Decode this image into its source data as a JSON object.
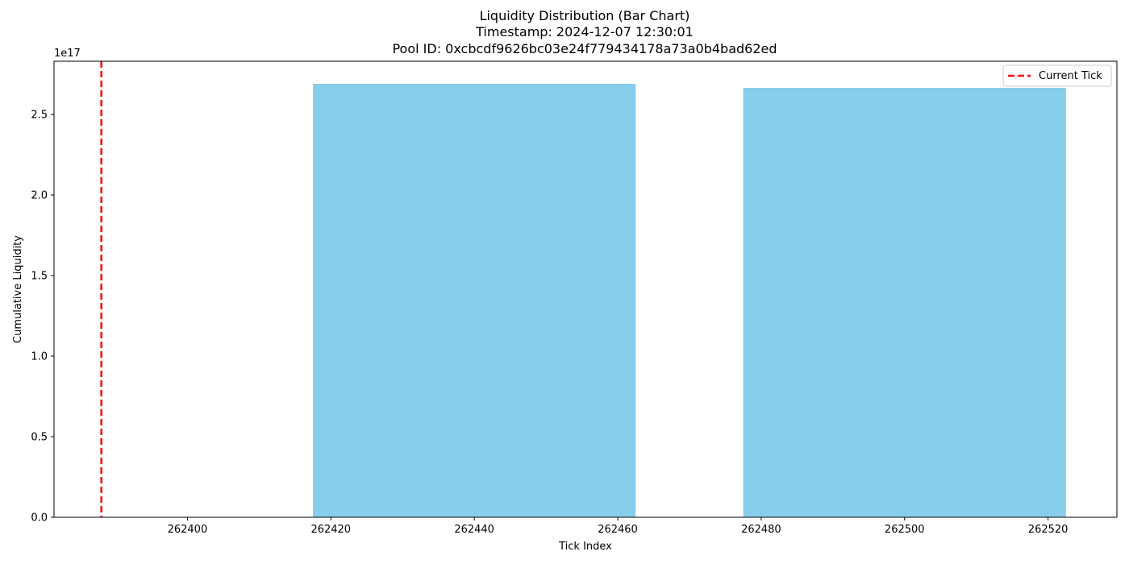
{
  "chart_data": {
    "type": "bar",
    "title_lines": [
      "Liquidity Distribution (Bar Chart)",
      "Timestamp: 2024-12-07 12:30:01",
      "Pool ID: 0xcbcdf9626bc03e24f779434178a73a0b4bad62ed"
    ],
    "xlabel": "Tick Index",
    "ylabel": "Cumulative Liquidity",
    "y_offset_label": "1e17",
    "bar_width": 45,
    "bars": [
      {
        "x": 262440,
        "value": 2.69
      },
      {
        "x": 262500,
        "value": 2.665
      }
    ],
    "bar_color": "#87CEEB",
    "xlim": [
      262381.4,
      262529.6
    ],
    "ylim": [
      0,
      2.83
    ],
    "xticks": [
      262400,
      262420,
      262440,
      262460,
      262480,
      262500,
      262520
    ],
    "xtick_labels": [
      "262400",
      "262420",
      "262440",
      "262460",
      "262480",
      "262500",
      "262520"
    ],
    "yticks": [
      0,
      0.5,
      1.0,
      1.5,
      2.0,
      2.5
    ],
    "ytick_labels": [
      "0.0",
      "0.5",
      "1.0",
      "1.5",
      "2.0",
      "2.5"
    ],
    "current_tick": 262388,
    "current_tick_color": "#ff0000",
    "legend": {
      "label": "Current Tick",
      "placement": "top-right"
    },
    "grid": false
  }
}
